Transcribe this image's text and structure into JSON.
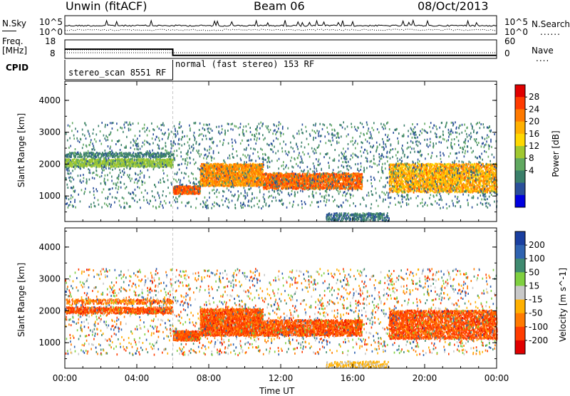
{
  "header": {
    "station": "Unwin (fitACF)",
    "beam": "Beam 06",
    "date": "08/Oct/2013"
  },
  "side_labels": {
    "nsky": "N.Sky",
    "nsearch": "N.Search",
    "freq": "Freq.",
    "mhz": "[MHz]",
    "nave": "Nave",
    "cpid": "CPID",
    "dotted_legend": "......",
    "dotted_legend_short": "...."
  },
  "noise_axis": {
    "left_ticks": [
      "10^5",
      "10^0"
    ],
    "right_ticks": [
      "10^5",
      "10^0"
    ]
  },
  "freq_axis": {
    "left_ticks": [
      "18",
      "8"
    ],
    "right_ticks": [
      "60",
      "0"
    ]
  },
  "cpid_segments": [
    {
      "label": "stereo_scan 8551 RF",
      "start_hour": 0,
      "end_hour": 6
    },
    {
      "label": "normal (fast stereo) 153 RF",
      "start_hour": 6,
      "end_hour": 24
    }
  ],
  "x_axis": {
    "title": "Time UT",
    "ticks": [
      "00:00",
      "04:00",
      "08:00",
      "12:00",
      "16:00",
      "20:00",
      "00:00"
    ],
    "tick_hours": [
      0,
      4,
      8,
      12,
      16,
      20,
      24
    ]
  },
  "y_axis": {
    "title": "Slant Range [km]",
    "ticks": [
      "1000",
      "2000",
      "3000",
      "4000"
    ],
    "tick_values": [
      1000,
      2000,
      3000,
      4000
    ],
    "range": [
      200,
      4600
    ]
  },
  "colorbars": {
    "power": {
      "title": "Power [dB]",
      "labels": [
        "28",
        "24",
        "20",
        "16",
        "12",
        "8",
        "4"
      ],
      "colors": [
        "#e00000",
        "#ff3b00",
        "#ff7a00",
        "#ffb000",
        "#ffd800",
        "#a0c830",
        "#60a860",
        "#3a7f6a",
        "#2a4f9a",
        "#0000e0"
      ]
    },
    "velocity": {
      "title": "Velocity [m s^-1]",
      "labels": [
        "200",
        "100",
        "50",
        "15",
        "-15",
        "-50",
        "-100",
        "-200"
      ],
      "colors": [
        "#1a3fa0",
        "#2f63b0",
        "#3f8a70",
        "#7fd040",
        "#c8c8c8",
        "#ffb000",
        "#ff7a00",
        "#ff3c00",
        "#e00000"
      ]
    }
  },
  "chart_data": [
    {
      "type": "line",
      "panel": "noise",
      "series": [
        {
          "name": "N.Sky",
          "style": "solid"
        },
        {
          "name": "N.Search",
          "style": "dotted"
        }
      ],
      "x_range_hours": [
        0,
        24
      ]
    },
    {
      "type": "line",
      "panel": "frequency",
      "series": [
        {
          "name": "Freq. [MHz]",
          "x_hours": [
            0,
            6,
            6,
            24
          ],
          "values": [
            13,
            13,
            9,
            9
          ]
        },
        {
          "name": "Nave",
          "style": "dotted"
        }
      ]
    },
    {
      "type": "heatmap",
      "panel": "power",
      "title": "Power [dB]",
      "x_range_hours": [
        0,
        24
      ],
      "y_range_km": [
        200,
        4600
      ],
      "bands": [
        {
          "t0": 0.0,
          "t1": 6.0,
          "r0": 1900,
          "r1": 2150,
          "density": 0.55,
          "values": [
            12,
            16
          ]
        },
        {
          "t0": 0.0,
          "t1": 6.0,
          "r0": 2200,
          "r1": 2350,
          "density": 0.4,
          "values": [
            6,
            10
          ]
        },
        {
          "t0": 6.0,
          "t1": 7.5,
          "r0": 1050,
          "r1": 1300,
          "density": 0.8,
          "values": [
            24,
            28
          ]
        },
        {
          "t0": 7.5,
          "t1": 11.0,
          "r0": 1300,
          "r1": 2000,
          "density": 0.6,
          "values": [
            20,
            26
          ]
        },
        {
          "t0": 11.0,
          "t1": 16.5,
          "r0": 1200,
          "r1": 1700,
          "density": 0.55,
          "values": [
            22,
            28
          ]
        },
        {
          "t0": 18.0,
          "t1": 24.0,
          "r0": 1100,
          "r1": 2000,
          "density": 0.45,
          "values": [
            16,
            26
          ]
        },
        {
          "t0": 14.5,
          "t1": 18.0,
          "r0": 200,
          "r1": 450,
          "density": 0.35,
          "values": [
            4,
            10
          ]
        },
        {
          "t0": 0.0,
          "t1": 24.0,
          "r0": 600,
          "r1": 3300,
          "density": 0.04,
          "values": [
            4,
            12
          ]
        }
      ]
    },
    {
      "type": "heatmap",
      "panel": "velocity",
      "title": "Velocity [m s^-1]",
      "x_range_hours": [
        0,
        24
      ],
      "y_range_km": [
        200,
        4600
      ],
      "bands": [
        {
          "t0": 0.0,
          "t1": 6.0,
          "r0": 1900,
          "r1": 2100,
          "density": 0.55,
          "values": [
            -200,
            -100
          ]
        },
        {
          "t0": 0.0,
          "t1": 6.0,
          "r0": 2200,
          "r1": 2350,
          "density": 0.35,
          "values": [
            -200,
            -50
          ]
        },
        {
          "t0": 6.0,
          "t1": 7.5,
          "r0": 1050,
          "r1": 1350,
          "density": 0.8,
          "values": [
            -200,
            -100
          ]
        },
        {
          "t0": 7.5,
          "t1": 11.0,
          "r0": 1200,
          "r1": 2050,
          "density": 0.6,
          "values": [
            -200,
            -100
          ]
        },
        {
          "t0": 11.0,
          "t1": 16.5,
          "r0": 1200,
          "r1": 1700,
          "density": 0.55,
          "values": [
            -200,
            -100
          ]
        },
        {
          "t0": 18.0,
          "t1": 24.0,
          "r0": 1100,
          "r1": 2000,
          "density": 0.45,
          "values": [
            -200,
            -100
          ]
        },
        {
          "t0": 14.5,
          "t1": 18.0,
          "r0": 200,
          "r1": 400,
          "density": 0.35,
          "values": [
            -50,
            -15
          ]
        },
        {
          "t0": 0.0,
          "t1": 24.0,
          "r0": 600,
          "r1": 3300,
          "density": 0.04,
          "values": [
            -200,
            200
          ]
        }
      ]
    }
  ]
}
